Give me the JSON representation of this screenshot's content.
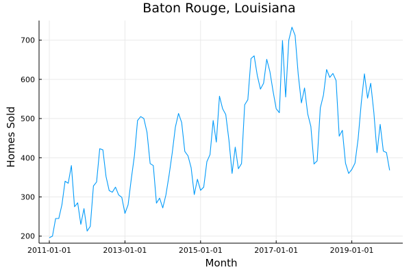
{
  "chart_data": {
    "type": "line",
    "title": "Baton Rouge, Louisiana",
    "xlabel": "Month",
    "ylabel": "Homes Sold",
    "x_start": "2011-01-01",
    "x_tick_labels": [
      "2011-01-01",
      "2013-01-01",
      "2015-01-01",
      "2017-01-01",
      "2019-01-01"
    ],
    "y_ticks": [
      200,
      300,
      400,
      500,
      600,
      700
    ],
    "ylim": [
      182,
      750
    ],
    "grid": true,
    "legend": "none",
    "colors": {
      "series": "#009af9"
    },
    "series": [
      {
        "values": [
          196,
          200,
          245,
          245,
          280,
          340,
          335,
          380,
          275,
          285,
          230,
          270,
          213,
          225,
          328,
          338,
          423,
          420,
          352,
          316,
          312,
          325,
          305,
          299,
          258,
          280,
          345,
          405,
          495,
          505,
          500,
          465,
          385,
          380,
          284,
          297,
          272,
          305,
          355,
          412,
          478,
          513,
          490,
          416,
          405,
          375,
          306,
          345,
          317,
          325,
          390,
          408,
          495,
          440,
          557,
          525,
          510,
          445,
          360,
          427,
          372,
          385,
          535,
          548,
          653,
          660,
          610,
          575,
          590,
          651,
          620,
          570,
          525,
          515,
          699,
          555,
          700,
          733,
          712,
          612,
          540,
          578,
          512,
          480,
          384,
          392,
          527,
          560,
          625,
          605,
          615,
          597,
          455,
          470,
          386,
          360,
          370,
          386,
          448,
          540,
          614,
          552,
          590,
          515,
          413,
          485,
          417,
          413,
          368
        ]
      }
    ]
  }
}
